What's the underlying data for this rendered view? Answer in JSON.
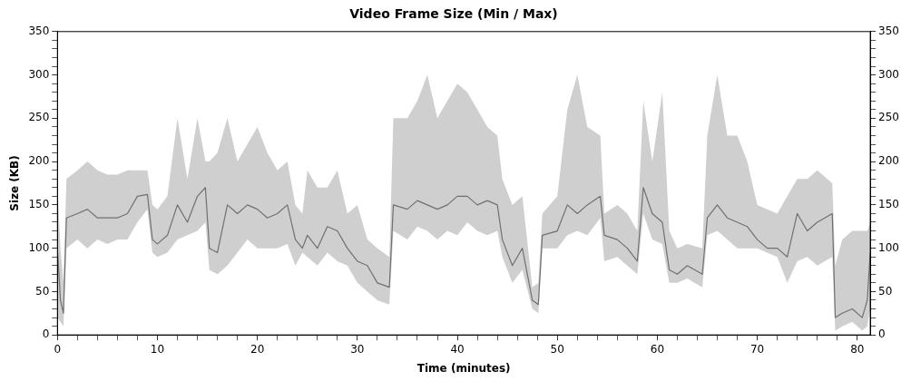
{
  "chart_data": {
    "type": "line",
    "title": "Video Frame Size (Min / Max)",
    "xlabel": "Time (minutes)",
    "ylabel": "Size (KB)",
    "xlim": [
      0,
      81.3
    ],
    "xticks": [
      0,
      {
        "value": 2,
        "label": null
      },
      {
        "value": 4,
        "label": null
      },
      {
        "value": 6,
        "label": null
      },
      {
        "value": 8,
        "label": null
      },
      10,
      {
        "value": 12,
        "label": null
      },
      {
        "value": 14,
        "label": null
      },
      {
        "value": 16,
        "label": null
      },
      {
        "value": 18,
        "label": null
      },
      20,
      {
        "value": 22,
        "label": null
      },
      {
        "value": 24,
        "label": null
      },
      {
        "value": 26,
        "label": null
      },
      {
        "value": 28,
        "label": null
      },
      30,
      {
        "value": 32,
        "label": null
      },
      {
        "value": 34,
        "label": null
      },
      {
        "value": 36,
        "label": null
      },
      {
        "value": 38,
        "label": null
      },
      40,
      {
        "value": 42,
        "label": null
      },
      {
        "value": 44,
        "label": null
      },
      {
        "value": 46,
        "label": null
      },
      {
        "value": 48,
        "label": null
      },
      50,
      {
        "value": 52,
        "label": null
      },
      {
        "value": 54,
        "label": null
      },
      {
        "value": 56,
        "label": null
      },
      {
        "value": 58,
        "label": null
      },
      60,
      {
        "value": 62,
        "label": null
      },
      {
        "value": 64,
        "label": null
      },
      {
        "value": 66,
        "label": null
      },
      {
        "value": 68,
        "label": null
      },
      70,
      {
        "value": 72,
        "label": null
      },
      {
        "value": 74,
        "label": null
      },
      {
        "value": 76,
        "label": null
      },
      {
        "value": 78,
        "label": null
      },
      80
    ],
    "ylim": [
      0,
      350
    ],
    "yticks": [
      0,
      {
        "value": 10,
        "label": null
      },
      {
        "value": 20,
        "label": null
      },
      {
        "value": 30,
        "label": null
      },
      {
        "value": 40,
        "label": null
      },
      50,
      {
        "value": 60,
        "label": null
      },
      {
        "value": 70,
        "label": null
      },
      {
        "value": 80,
        "label": null
      },
      {
        "value": 90,
        "label": null
      },
      100,
      {
        "value": 110,
        "label": null
      },
      {
        "value": 120,
        "label": null
      },
      {
        "value": 130,
        "label": null
      },
      {
        "value": 140,
        "label": null
      },
      150,
      {
        "value": 160,
        "label": null
      },
      {
        "value": 170,
        "label": null
      },
      {
        "value": 180,
        "label": null
      },
      {
        "value": 190,
        "label": null
      },
      200,
      {
        "value": 210,
        "label": null
      },
      {
        "value": 220,
        "label": null
      },
      {
        "value": 230,
        "label": null
      },
      {
        "value": 240,
        "label": null
      },
      250,
      {
        "value": 260,
        "label": null
      },
      {
        "value": 270,
        "label": null
      },
      {
        "value": 280,
        "label": null
      },
      {
        "value": 290,
        "label": null
      },
      300,
      {
        "value": 310,
        "label": null
      },
      {
        "value": 320,
        "label": null
      },
      {
        "value": 330,
        "label": null
      },
      {
        "value": 340,
        "label": null
      },
      350
    ],
    "y2lim": [
      0,
      350
    ],
    "y2ticks": [
      0,
      {
        "value": 10,
        "label": null
      },
      {
        "value": 20,
        "label": null
      },
      {
        "value": 30,
        "label": null
      },
      {
        "value": 40,
        "label": null
      },
      50,
      {
        "value": 60,
        "label": null
      },
      {
        "value": 70,
        "label": null
      },
      {
        "value": 80,
        "label": null
      },
      {
        "value": 90,
        "label": null
      },
      100,
      {
        "value": 110,
        "label": null
      },
      {
        "value": 120,
        "label": null
      },
      {
        "value": 130,
        "label": null
      },
      {
        "value": 140,
        "label": null
      },
      150,
      {
        "value": 160,
        "label": null
      },
      {
        "value": 170,
        "label": null
      },
      {
        "value": 180,
        "label": null
      },
      {
        "value": 190,
        "label": null
      },
      200,
      {
        "value": 210,
        "label": null
      },
      {
        "value": 220,
        "label": null
      },
      {
        "value": 230,
        "label": null
      },
      {
        "value": 240,
        "label": null
      },
      250,
      {
        "value": 260,
        "label": null
      },
      {
        "value": 270,
        "label": null
      },
      {
        "value": 280,
        "label": null
      },
      {
        "value": 290,
        "label": null
      },
      300,
      {
        "value": 310,
        "label": null
      },
      {
        "value": 320,
        "label": null
      },
      {
        "value": 330,
        "label": null
      },
      {
        "value": 340,
        "label": null
      },
      350
    ],
    "grid": false,
    "legend": false,
    "marker": "none",
    "line_style": "solid",
    "series": [
      {
        "color": "#707070",
        "x": [
          0,
          0.3,
          0.6,
          0.9,
          2,
          3,
          4,
          5,
          6,
          7,
          8,
          9,
          9.5,
          10,
          11,
          12,
          13,
          14,
          14.8,
          15.2,
          16,
          17,
          18,
          19,
          20,
          21,
          22,
          23,
          23.8,
          24.5,
          25,
          26,
          27,
          28,
          29,
          30,
          31,
          32,
          33.2,
          33.6,
          35,
          36,
          37,
          38,
          39,
          40,
          41,
          42,
          43,
          44,
          44.5,
          45.5,
          46.5,
          47.5,
          48.1,
          48.5,
          50,
          51,
          52,
          53,
          54.3,
          54.7,
          56,
          57,
          58,
          58.6,
          59.5,
          60.5,
          61.2,
          62,
          63,
          64.5,
          65,
          66,
          67,
          68,
          69,
          70,
          71,
          72,
          73,
          74,
          75,
          76,
          77.5,
          77.8,
          78.5,
          79.5,
          80.5,
          81,
          81.3
        ],
        "values": [
          100,
          40,
          25,
          135,
          140,
          145,
          135,
          135,
          135,
          140,
          160,
          162,
          110,
          105,
          115,
          150,
          130,
          160,
          170,
          100,
          95,
          150,
          140,
          150,
          145,
          135,
          140,
          150,
          110,
          100,
          115,
          100,
          125,
          120,
          100,
          85,
          80,
          60,
          55,
          150,
          145,
          155,
          150,
          145,
          150,
          160,
          160,
          150,
          155,
          150,
          110,
          80,
          100,
          40,
          35,
          115,
          120,
          150,
          140,
          150,
          160,
          115,
          110,
          100,
          85,
          170,
          140,
          130,
          75,
          70,
          80,
          70,
          135,
          150,
          135,
          130,
          125,
          110,
          100,
          100,
          90,
          140,
          120,
          130,
          140,
          20,
          25,
          30,
          20,
          40,
          95
        ],
        "lower": [
          20,
          15,
          10,
          100,
          110,
          100,
          110,
          105,
          110,
          110,
          130,
          145,
          95,
          90,
          95,
          110,
          115,
          120,
          130,
          75,
          70,
          80,
          95,
          110,
          100,
          100,
          100,
          105,
          80,
          95,
          90,
          80,
          95,
          85,
          80,
          60,
          50,
          40,
          35,
          120,
          110,
          125,
          120,
          110,
          120,
          115,
          130,
          120,
          115,
          120,
          90,
          60,
          75,
          30,
          25,
          100,
          100,
          115,
          120,
          115,
          135,
          85,
          90,
          80,
          70,
          140,
          110,
          105,
          60,
          60,
          65,
          55,
          115,
          120,
          110,
          100,
          100,
          100,
          95,
          90,
          60,
          85,
          90,
          80,
          90,
          5,
          10,
          15,
          5,
          10,
          30
        ],
        "upper": [
          175,
          100,
          60,
          180,
          190,
          200,
          190,
          185,
          185,
          190,
          190,
          190,
          150,
          145,
          160,
          250,
          180,
          250,
          200,
          200,
          210,
          250,
          200,
          220,
          240,
          210,
          190,
          200,
          150,
          140,
          190,
          170,
          170,
          190,
          140,
          150,
          110,
          100,
          90,
          250,
          250,
          270,
          300,
          250,
          270,
          290,
          280,
          260,
          240,
          230,
          180,
          150,
          160,
          55,
          60,
          140,
          160,
          260,
          300,
          240,
          230,
          140,
          150,
          140,
          120,
          270,
          200,
          280,
          120,
          100,
          105,
          100,
          230,
          300,
          230,
          230,
          200,
          150,
          145,
          140,
          160,
          180,
          180,
          190,
          175,
          80,
          110,
          120,
          120,
          120,
          130
        ]
      }
    ]
  }
}
